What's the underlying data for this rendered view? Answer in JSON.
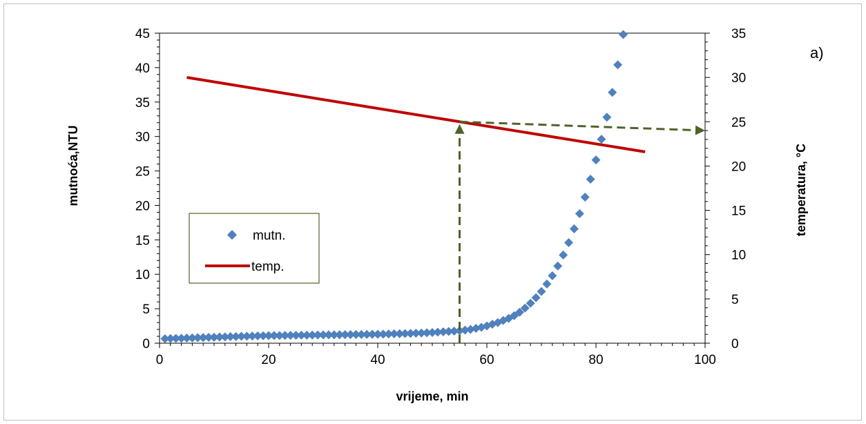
{
  "chart_data": {
    "type": "scatter",
    "panel_label": "a)",
    "xlabel": "vrijeme, min",
    "ylabel_left": "mutnoća,NTU",
    "ylabel_right": "temperatura, °C",
    "xlim": [
      0,
      100
    ],
    "ylim_left": [
      0,
      45
    ],
    "ylim_right": [
      0,
      35
    ],
    "x_ticks": [
      0,
      20,
      40,
      60,
      80,
      100
    ],
    "y_ticks_left": [
      0,
      5,
      10,
      15,
      20,
      25,
      30,
      35,
      40,
      45
    ],
    "y_ticks_right": [
      0,
      5,
      10,
      15,
      20,
      25,
      30,
      35
    ],
    "grid": false,
    "legend_position": "left",
    "series": [
      {
        "name": "mutn.",
        "type": "scatter",
        "axis": "left",
        "color": "#4f81bd",
        "marker": "diamond",
        "x": [
          1,
          2,
          3,
          4,
          5,
          6,
          7,
          8,
          9,
          10,
          11,
          12,
          13,
          14,
          15,
          16,
          17,
          18,
          19,
          20,
          21,
          22,
          23,
          24,
          25,
          26,
          27,
          28,
          29,
          30,
          31,
          32,
          33,
          34,
          35,
          36,
          37,
          38,
          39,
          40,
          41,
          42,
          43,
          44,
          45,
          46,
          47,
          48,
          49,
          50,
          51,
          52,
          53,
          54,
          55,
          56,
          57,
          58,
          59,
          60,
          61,
          62,
          63,
          64,
          65,
          66,
          67,
          68,
          69,
          70,
          71,
          72,
          73,
          74,
          75,
          76,
          77,
          78,
          79,
          80,
          81,
          82,
          83,
          84,
          85
        ],
        "y": [
          0.65,
          0.68,
          0.7,
          0.72,
          0.75,
          0.77,
          0.8,
          0.82,
          0.85,
          0.87,
          0.9,
          0.92,
          0.95,
          0.97,
          1.0,
          1.02,
          1.04,
          1.06,
          1.08,
          1.1,
          1.11,
          1.12,
          1.13,
          1.14,
          1.15,
          1.16,
          1.17,
          1.18,
          1.19,
          1.2,
          1.21,
          1.22,
          1.23,
          1.24,
          1.25,
          1.26,
          1.27,
          1.28,
          1.29,
          1.3,
          1.32,
          1.34,
          1.36,
          1.38,
          1.4,
          1.42,
          1.45,
          1.48,
          1.51,
          1.55,
          1.6,
          1.65,
          1.7,
          1.75,
          1.8,
          1.9,
          2.0,
          2.15,
          2.3,
          2.5,
          2.75,
          3.0,
          3.3,
          3.6,
          4.0,
          4.5,
          5.1,
          5.8,
          6.6,
          7.5,
          8.6,
          9.8,
          11.2,
          12.8,
          14.6,
          16.6,
          18.8,
          21.2,
          23.8,
          26.6,
          29.6,
          32.8,
          36.4,
          40.4,
          44.8
        ]
      },
      {
        "name": "temp.",
        "type": "line",
        "axis": "right",
        "color": "#c00000",
        "x": [
          5,
          89
        ],
        "y": [
          30,
          21.6
        ]
      }
    ],
    "annotations": [
      {
        "type": "arrow",
        "style": "dashed",
        "color": "#4f6228",
        "axis": "left",
        "from": [
          55,
          0
        ],
        "to": [
          55,
          31.8
        ]
      },
      {
        "type": "arrow",
        "style": "dashed",
        "color": "#4f6228",
        "axis": "right",
        "from": [
          55,
          25
        ],
        "to": [
          100,
          24
        ]
      }
    ]
  }
}
